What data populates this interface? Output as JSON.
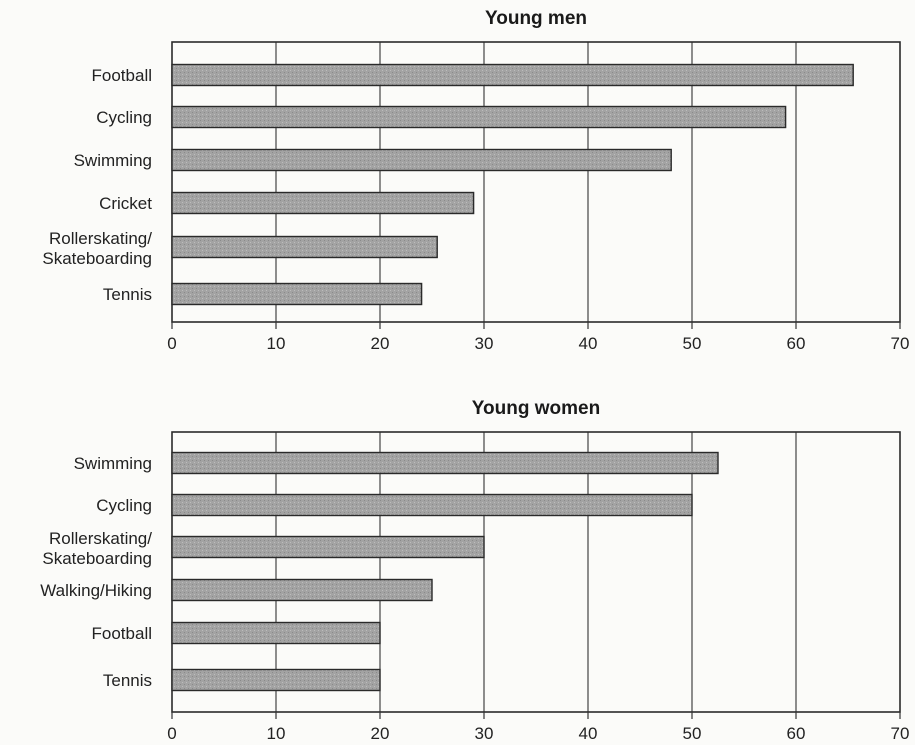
{
  "chart_data": [
    {
      "type": "bar",
      "orientation": "horizontal",
      "title": "Young men",
      "categories": [
        "Football",
        "Cycling",
        "Swimming",
        "Cricket",
        "Rollerskating/ Skateboarding",
        "Tennis"
      ],
      "values": [
        65.5,
        59,
        48,
        29,
        25.5,
        24
      ],
      "xlim": [
        0,
        70
      ],
      "xticks": [
        0,
        10,
        20,
        30,
        40,
        50,
        60,
        70
      ],
      "grid": true,
      "xlabel": "",
      "ylabel": "",
      "bar_color": "#9a9a9a"
    },
    {
      "type": "bar",
      "orientation": "horizontal",
      "title": "Young women",
      "categories": [
        "Swimming",
        "Cycling",
        "Rollerskating/ Skateboarding",
        "Walking/Hiking",
        "Football",
        "Tennis"
      ],
      "values": [
        52.5,
        50,
        30,
        25,
        20,
        20
      ],
      "xlim": [
        0,
        70
      ],
      "xticks": [
        0,
        10,
        20,
        30,
        40,
        50,
        60,
        70
      ],
      "grid": true,
      "xlabel": "",
      "ylabel": "",
      "bar_color": "#9a9a9a"
    }
  ]
}
